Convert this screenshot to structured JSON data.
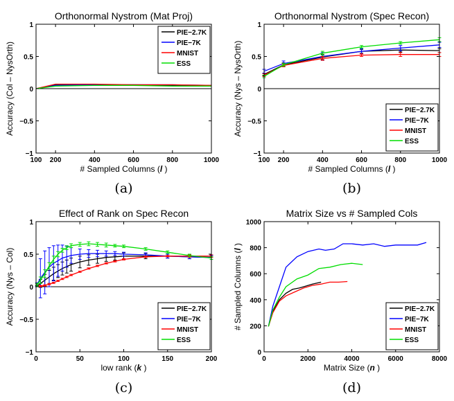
{
  "chart_data": [
    {
      "type": "line",
      "title": "Orthonormal Nystrom (Mat Proj)",
      "xlabel": "# Sampled Columns (",
      "xlabel_var": "l",
      "xlabel_close": ")",
      "ylabel": "Accuracy (Col – NysOrth)",
      "caption": "(a)",
      "xlim": [
        100,
        1000
      ],
      "ylim": [
        -1,
        1
      ],
      "xticks": [
        100,
        200,
        400,
        600,
        800,
        1000
      ],
      "xtick_labels": [
        "100",
        "200",
        "400",
        "600",
        "800",
        "1000"
      ],
      "yticks": [
        -1,
        -0.5,
        0,
        0.5,
        1
      ],
      "ytick_labels": [
        "−1",
        "−0.5",
        "0",
        "0.5",
        "1"
      ],
      "zero_line": true,
      "legend_position": "top-right",
      "x": [
        100,
        200,
        400,
        600,
        800,
        1000
      ],
      "series": [
        {
          "name": "PIE−2.7K",
          "color": "#000000",
          "values": [
            0,
            0.06,
            0.06,
            0.06,
            0.05,
            0.05
          ]
        },
        {
          "name": "PIE−7K",
          "color": "#0000ff",
          "values": [
            0,
            0.05,
            0.06,
            0.06,
            0.06,
            0.05
          ]
        },
        {
          "name": "MNIST",
          "color": "#ff0000",
          "values": [
            0,
            0.07,
            0.07,
            0.06,
            0.06,
            0.05
          ]
        },
        {
          "name": "ESS",
          "color": "#00dd00",
          "values": [
            0,
            0.04,
            0.05,
            0.05,
            0.04,
            0.04
          ]
        }
      ]
    },
    {
      "type": "line",
      "title": "Orthonormal Nystrom (Spec Recon)",
      "xlabel": "# Sampled Columns (",
      "xlabel_var": "l",
      "xlabel_close": ")",
      "ylabel": "Accuracy (Nys – NysOrth)",
      "caption": "(b)",
      "xlim": [
        100,
        1000
      ],
      "ylim": [
        -1,
        1
      ],
      "xticks": [
        100,
        200,
        400,
        600,
        800,
        1000
      ],
      "xtick_labels": [
        "100",
        "200",
        "400",
        "600",
        "800",
        "1000"
      ],
      "yticks": [
        -1,
        -0.5,
        0,
        0.5,
        1
      ],
      "ytick_labels": [
        "−1",
        "−0.5",
        "0",
        "0.5",
        "1"
      ],
      "zero_line": true,
      "legend_position": "bottom-right",
      "x": [
        100,
        200,
        400,
        600,
        800,
        1000
      ],
      "series": [
        {
          "name": "PIE−2.7K",
          "color": "#000000",
          "values": [
            0.22,
            0.37,
            0.49,
            0.58,
            0.6,
            0.59
          ],
          "errors": [
            0.02,
            0.03,
            0.04,
            0.03,
            0.03,
            0.03
          ]
        },
        {
          "name": "PIE−7K",
          "color": "#0000ff",
          "values": [
            0.27,
            0.39,
            0.5,
            0.58,
            0.63,
            0.68
          ],
          "errors": [
            0.03,
            0.04,
            0.06,
            0.04,
            0.04,
            0.04
          ]
        },
        {
          "name": "MNIST",
          "color": "#ff0000",
          "values": [
            0.21,
            0.36,
            0.47,
            0.52,
            0.53,
            0.53
          ],
          "errors": [
            0.02,
            0.02,
            0.03,
            0.02,
            0.03,
            0.03
          ]
        },
        {
          "name": "ESS",
          "color": "#00dd00",
          "values": [
            0.19,
            0.37,
            0.55,
            0.65,
            0.71,
            0.76
          ],
          "errors": [
            0.02,
            0.02,
            0.03,
            0.02,
            0.02,
            0.03
          ]
        }
      ]
    },
    {
      "type": "line",
      "title": "Effect of Rank on Spec Recon",
      "xlabel": "low rank (",
      "xlabel_var": "k",
      "xlabel_close": ")",
      "ylabel": "Accuracy (Nys – Col)",
      "caption": "(c)",
      "xlim": [
        0,
        200
      ],
      "ylim": [
        -1,
        1
      ],
      "xticks": [
        0,
        50,
        100,
        150,
        200
      ],
      "xtick_labels": [
        "0",
        "50",
        "100",
        "150",
        "200"
      ],
      "yticks": [
        -1,
        -0.5,
        0,
        0.5,
        1
      ],
      "ytick_labels": [
        "−1",
        "−0.5",
        "0",
        "0.5",
        "1"
      ],
      "zero_line": true,
      "legend_position": "bottom-right",
      "x": [
        1,
        5,
        10,
        15,
        20,
        25,
        30,
        35,
        40,
        50,
        60,
        70,
        80,
        90,
        100,
        125,
        150,
        175,
        200
      ],
      "series": [
        {
          "name": "PIE−2.7K",
          "color": "#000000",
          "values": [
            0.01,
            0.05,
            0.1,
            0.15,
            0.2,
            0.24,
            0.28,
            0.31,
            0.34,
            0.38,
            0.41,
            0.43,
            0.45,
            0.46,
            0.47,
            0.47,
            0.47,
            0.46,
            0.45
          ],
          "errors": [
            0.01,
            0.06,
            0.09,
            0.1,
            0.1,
            0.1,
            0.1,
            0.1,
            0.1,
            0.09,
            0.08,
            0.07,
            0.06,
            0.05,
            0.05,
            0.04,
            0.03,
            0.03,
            0.03
          ]
        },
        {
          "name": "PIE−7K",
          "color": "#0000ff",
          "values": [
            0.03,
            0.13,
            0.22,
            0.3,
            0.36,
            0.4,
            0.44,
            0.46,
            0.48,
            0.5,
            0.51,
            0.51,
            0.51,
            0.51,
            0.5,
            0.49,
            0.47,
            0.46,
            0.45
          ],
          "errors": [
            0.03,
            0.3,
            0.33,
            0.3,
            0.27,
            0.24,
            0.2,
            0.16,
            0.12,
            0.08,
            0.06,
            0.05,
            0.04,
            0.03,
            0.03,
            0.03,
            0.03,
            0.03,
            0.03
          ]
        },
        {
          "name": "MNIST",
          "color": "#ff0000",
          "values": [
            0,
            0.01,
            0.02,
            0.04,
            0.06,
            0.09,
            0.12,
            0.15,
            0.18,
            0.23,
            0.28,
            0.32,
            0.36,
            0.39,
            0.42,
            0.46,
            0.47,
            0.47,
            0.47
          ],
          "errors": [
            0,
            0.01,
            0.01,
            0.01,
            0.01,
            0.01,
            0.01,
            0.01,
            0.01,
            0.01,
            0.01,
            0.01,
            0.01,
            0.01,
            0.01,
            0.01,
            0.01,
            0.02,
            0.02
          ]
        },
        {
          "name": "ESS",
          "color": "#00dd00",
          "values": [
            0.03,
            0.1,
            0.2,
            0.32,
            0.42,
            0.5,
            0.56,
            0.6,
            0.63,
            0.65,
            0.66,
            0.65,
            0.64,
            0.63,
            0.62,
            0.58,
            0.53,
            0.48,
            0.44
          ],
          "errors": [
            0.02,
            0.05,
            0.06,
            0.05,
            0.05,
            0.04,
            0.03,
            0.03,
            0.03,
            0.03,
            0.03,
            0.03,
            0.03,
            0.02,
            0.02,
            0.02,
            0.02,
            0.02,
            0.02
          ]
        }
      ]
    },
    {
      "type": "line",
      "title": "Matrix Size vs # Sampled Cols",
      "xlabel": "Matrix Size (",
      "xlabel_var": "n",
      "xlabel_close": ")",
      "ylabel": "# Sampled Columns (",
      "ylabel_var": "l",
      "ylabel_close": ")",
      "caption": "(d)",
      "xlim": [
        0,
        8000
      ],
      "ylim": [
        0,
        1000
      ],
      "xticks": [
        0,
        2000,
        4000,
        6000,
        8000
      ],
      "xtick_labels": [
        "0",
        "2000",
        "4000",
        "6000",
        "8000"
      ],
      "yticks": [
        0,
        200,
        400,
        600,
        800,
        1000
      ],
      "ytick_labels": [
        "0",
        "200",
        "400",
        "600",
        "800",
        "1000"
      ],
      "zero_line": false,
      "legend_position": "bottom-right",
      "series": [
        {
          "name": "PIE−2.7K",
          "color": "#000000",
          "x": [
            200,
            400,
            700,
            1000,
            1300,
            1600,
            1900,
            2200,
            2600
          ],
          "values": [
            195,
            310,
            400,
            450,
            480,
            490,
            505,
            520,
            535
          ]
        },
        {
          "name": "PIE−7K",
          "color": "#0000ff",
          "x": [
            200,
            400,
            700,
            1000,
            1500,
            2000,
            2500,
            2800,
            3200,
            3600,
            4000,
            4500,
            5000,
            5500,
            6000,
            6500,
            7000,
            7400
          ],
          "values": [
            195,
            350,
            500,
            650,
            730,
            770,
            790,
            780,
            790,
            830,
            830,
            820,
            830,
            810,
            820,
            820,
            820,
            840
          ]
        },
        {
          "name": "MNIST",
          "color": "#ff0000",
          "x": [
            200,
            400,
            700,
            1000,
            1400,
            1800,
            2200,
            2600,
            3000,
            3400,
            3800
          ],
          "values": [
            195,
            300,
            390,
            430,
            460,
            490,
            510,
            520,
            535,
            535,
            540
          ]
        },
        {
          "name": "ESS",
          "color": "#00dd00",
          "x": [
            200,
            400,
            700,
            1000,
            1500,
            2000,
            2500,
            3000,
            3500,
            4000,
            4500
          ],
          "values": [
            195,
            320,
            420,
            500,
            560,
            590,
            640,
            650,
            670,
            680,
            670
          ]
        }
      ]
    }
  ]
}
